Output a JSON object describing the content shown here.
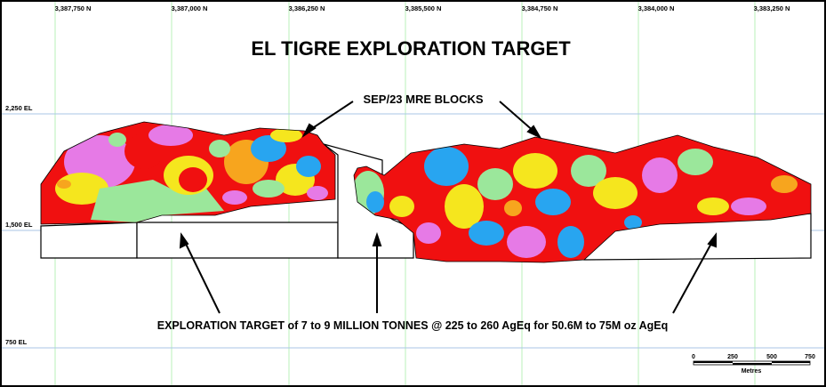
{
  "title": "EL TIGRE EXPLORATION TARGET",
  "northing_labels": [
    "3,387,750 N",
    "3,387,000 N",
    "3,386,250 N",
    "3,385,500 N",
    "3,384,750 N",
    "3,384,000 N",
    "3,383,250 N"
  ],
  "elevation_labels": [
    "2,250 EL",
    "1,500 EL",
    "750 EL"
  ],
  "callout_blocks": "SEP/23 MRE BLOCKS",
  "callout_target": "EXPLORATION TARGET of 7 to 9 MILLION TONNES @ 225 to 260 AgEq for 50.6M to 75M oz AgEq",
  "scale_bar": {
    "ticks": [
      "0",
      "250",
      "500",
      "750"
    ],
    "unit": "Metres"
  },
  "colors": {
    "grid_north": "#b8f0b8",
    "grid_elev": "#a9c6e6",
    "block_red": "#f01010",
    "block_yellow": "#f5e61e",
    "block_blue": "#28a5f0",
    "block_green": "#9be79b",
    "block_pink": "#e67ae6",
    "block_orange": "#f7a51e"
  }
}
